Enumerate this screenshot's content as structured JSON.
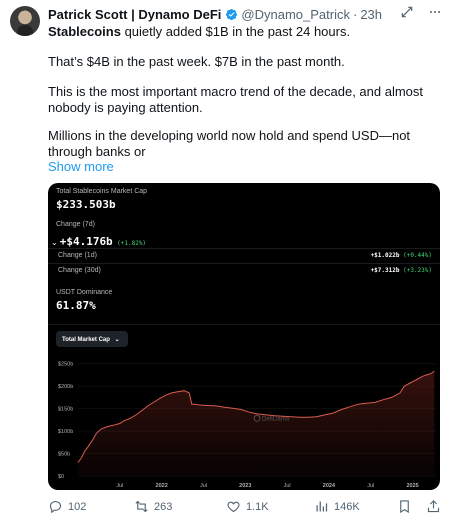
{
  "author": {
    "name": "Patrick Scott | Dynamo DeFi",
    "handle": "@Dynamo_Patrick",
    "time": "23h"
  },
  "tweet": {
    "p1_bold": "Stablecoins",
    "p1_rest": " quietly added $1B in the past 24 hours.",
    "p2": "That’s $4B in the past week. $7B in the past month.",
    "p3": "This is the most important macro trend of the decade, and almost nobody is paying attention.",
    "p4": "Millions in the developing world now hold and spend USD—not through banks or",
    "show_more": "Show more"
  },
  "card": {
    "total_label": "Total Stablecoins Market Cap",
    "total_value": "$233.503b",
    "change7_label": "Change (7d)",
    "change7_value": "+$4.176b",
    "change7_pct": "(+1.82%)",
    "change1_label": "Change (1d)",
    "change1_value": "+$1.022b",
    "change1_pct": "(+0.44%)",
    "change30_label": "Change (30d)",
    "change30_value": "+$7.312b",
    "change30_pct": "(+3.23%)",
    "usdt_label": "USDT Dominance",
    "usdt_value": "61.87%",
    "dropdown_label": "Total Market Cap",
    "watermark": "DefiLlama"
  },
  "chart_data": {
    "type": "area",
    "series": [
      {
        "points": [
          [
            2021.0,
            30
          ],
          [
            2021.04,
            40
          ],
          [
            2021.08,
            55
          ],
          [
            2021.12,
            65
          ],
          [
            2021.18,
            82
          ],
          [
            2021.22,
            95
          ],
          [
            2021.28,
            105
          ],
          [
            2021.35,
            110
          ],
          [
            2021.42,
            113
          ],
          [
            2021.5,
            117
          ],
          [
            2021.55,
            123
          ],
          [
            2021.62,
            128
          ],
          [
            2021.7,
            137
          ],
          [
            2021.78,
            148
          ],
          [
            2021.85,
            158
          ],
          [
            2021.92,
            166
          ],
          [
            2021.98,
            173
          ],
          [
            2022.05,
            180
          ],
          [
            2022.12,
            185
          ],
          [
            2022.2,
            188
          ],
          [
            2022.27,
            190
          ],
          [
            2022.33,
            185
          ],
          [
            2022.36,
            160
          ],
          [
            2022.4,
            160
          ],
          [
            2022.45,
            158
          ],
          [
            2022.55,
            157
          ],
          [
            2022.65,
            156
          ],
          [
            2022.75,
            153
          ],
          [
            2022.85,
            151
          ],
          [
            2022.95,
            148
          ],
          [
            2023.05,
            142
          ],
          [
            2023.15,
            138
          ],
          [
            2023.25,
            136
          ],
          [
            2023.35,
            134
          ],
          [
            2023.45,
            133
          ],
          [
            2023.55,
            132
          ],
          [
            2023.65,
            131
          ],
          [
            2023.75,
            131
          ],
          [
            2023.85,
            132
          ],
          [
            2023.95,
            136
          ],
          [
            2024.05,
            140
          ],
          [
            2024.15,
            148
          ],
          [
            2024.25,
            154
          ],
          [
            2024.35,
            160
          ],
          [
            2024.45,
            162
          ],
          [
            2024.55,
            164
          ],
          [
            2024.65,
            170
          ],
          [
            2024.75,
            175
          ],
          [
            2024.85,
            185
          ],
          [
            2024.9,
            200
          ],
          [
            2024.97,
            207
          ],
          [
            2025.05,
            215
          ],
          [
            2025.12,
            222
          ],
          [
            2025.18,
            226
          ],
          [
            2025.22,
            228
          ],
          [
            2025.26,
            233.5
          ]
        ]
      }
    ],
    "yticks": [
      {
        "value": 0,
        "label": "$0"
      },
      {
        "value": 50,
        "label": "$50b"
      },
      {
        "value": 100,
        "label": "$100b"
      },
      {
        "value": 150,
        "label": "$150b"
      },
      {
        "value": 200,
        "label": "$200b"
      },
      {
        "value": 250,
        "label": "$250b"
      }
    ],
    "xticks": [
      {
        "value": 2021.5,
        "label": "Jul"
      },
      {
        "value": 2022.0,
        "label": "2022"
      },
      {
        "value": 2022.5,
        "label": "Jul"
      },
      {
        "value": 2023.0,
        "label": "2023"
      },
      {
        "value": 2023.5,
        "label": "Jul"
      },
      {
        "value": 2024.0,
        "label": "2024"
      },
      {
        "value": 2024.5,
        "label": "Jul"
      },
      {
        "value": 2025.0,
        "label": "2025"
      }
    ],
    "xlim": [
      2021.0,
      2025.28
    ],
    "ylim": [
      0,
      265
    ],
    "line_color": "#d95c4e",
    "fill_color": "#5a1d17"
  },
  "actions": {
    "replies": "102",
    "reposts": "263",
    "likes": "1.1K",
    "views": "146K"
  },
  "colors": {
    "link": "#1d9bf0",
    "muted": "#536471",
    "green": "#3fd873"
  }
}
